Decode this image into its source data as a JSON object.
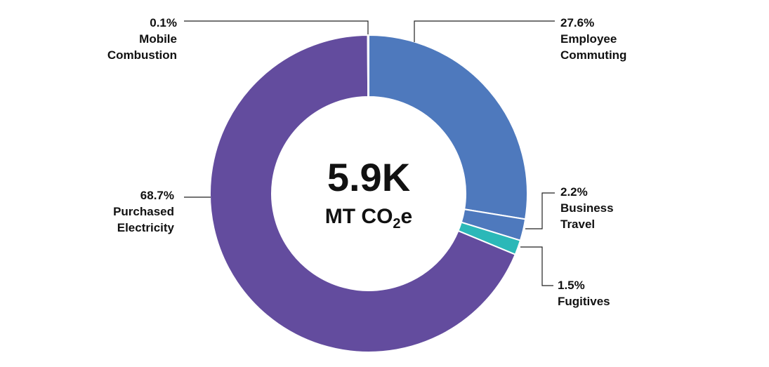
{
  "chart_data": {
    "type": "pie",
    "variant": "donut",
    "center": {
      "value": "5.9K",
      "unit_prefix": "MT CO",
      "unit_subscript": "2",
      "unit_suffix": "e"
    },
    "slices": [
      {
        "percent_label": "27.6%",
        "label_lines": [
          "Employee",
          "Commuting"
        ],
        "value": 27.6,
        "color": "#4e79bd"
      },
      {
        "percent_label": "2.2%",
        "label_lines": [
          "Business",
          "Travel"
        ],
        "value": 2.2,
        "color": "#4e79bd"
      },
      {
        "percent_label": "1.5%",
        "label_lines": [
          "Fugitives"
        ],
        "value": 1.5,
        "color": "#2bb8b8"
      },
      {
        "percent_label": "68.7%",
        "label_lines": [
          "Purchased",
          "Electricity"
        ],
        "value": 68.7,
        "color": "#634c9e"
      },
      {
        "percent_label": "0.1%",
        "label_lines": [
          "Mobile",
          "Combustion"
        ],
        "value": 0.1,
        "color": "#634c9e"
      }
    ]
  }
}
